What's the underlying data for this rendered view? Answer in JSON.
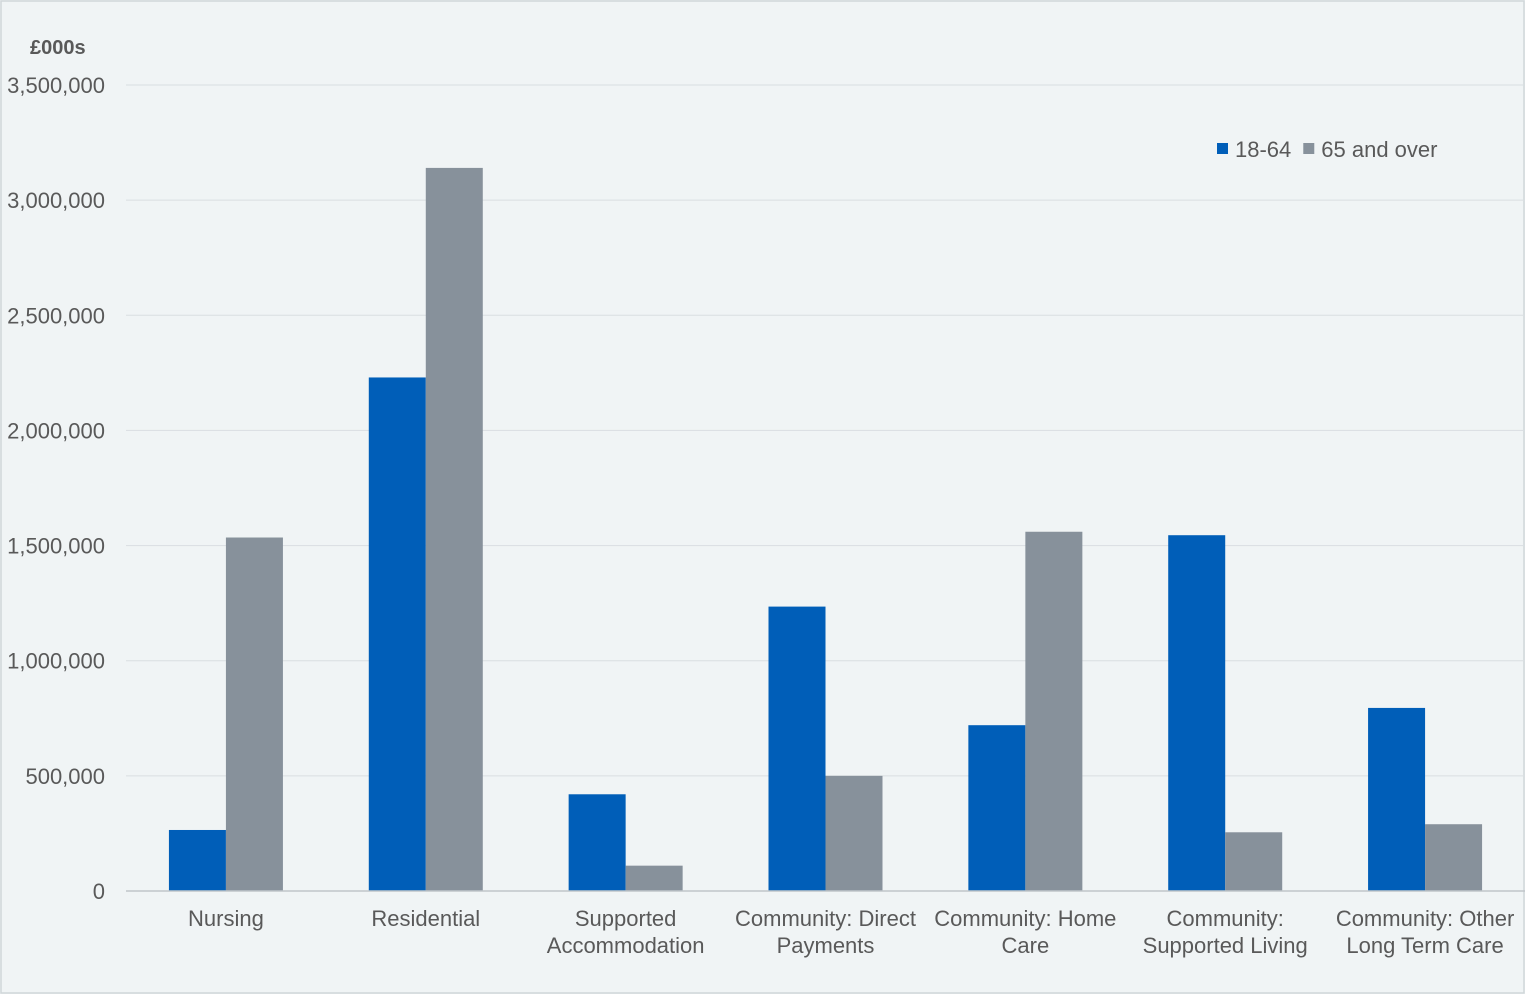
{
  "chart_data": {
    "type": "bar",
    "ylabel": "£000s",
    "ylim": [
      0,
      3500000
    ],
    "yticks": [
      0,
      500000,
      1000000,
      1500000,
      2000000,
      2500000,
      3000000,
      3500000
    ],
    "ytick_labels": [
      "0",
      "500,000",
      "1,000,000",
      "1,500,000",
      "2,000,000",
      "2,500,000",
      "3,000,000",
      "3,500,000"
    ],
    "grid": true,
    "legend_position": "top-right",
    "categories": [
      [
        "Nursing"
      ],
      [
        "Residential"
      ],
      [
        "Supported",
        "Accommodation"
      ],
      [
        "Community: Direct",
        "Payments"
      ],
      [
        "Community: Home",
        "Care"
      ],
      [
        "Community:",
        "Supported Living"
      ],
      [
        "Community: Other",
        "Long Term Care"
      ]
    ],
    "series": [
      {
        "name": "18-64",
        "color": "#005EB8",
        "values": [
          265000,
          2230000,
          420000,
          1235000,
          720000,
          1545000,
          795000
        ]
      },
      {
        "name": "65 and over",
        "color": "#87919B",
        "values": [
          1535000,
          3140000,
          110000,
          500000,
          1560000,
          255000,
          290000
        ]
      }
    ]
  }
}
